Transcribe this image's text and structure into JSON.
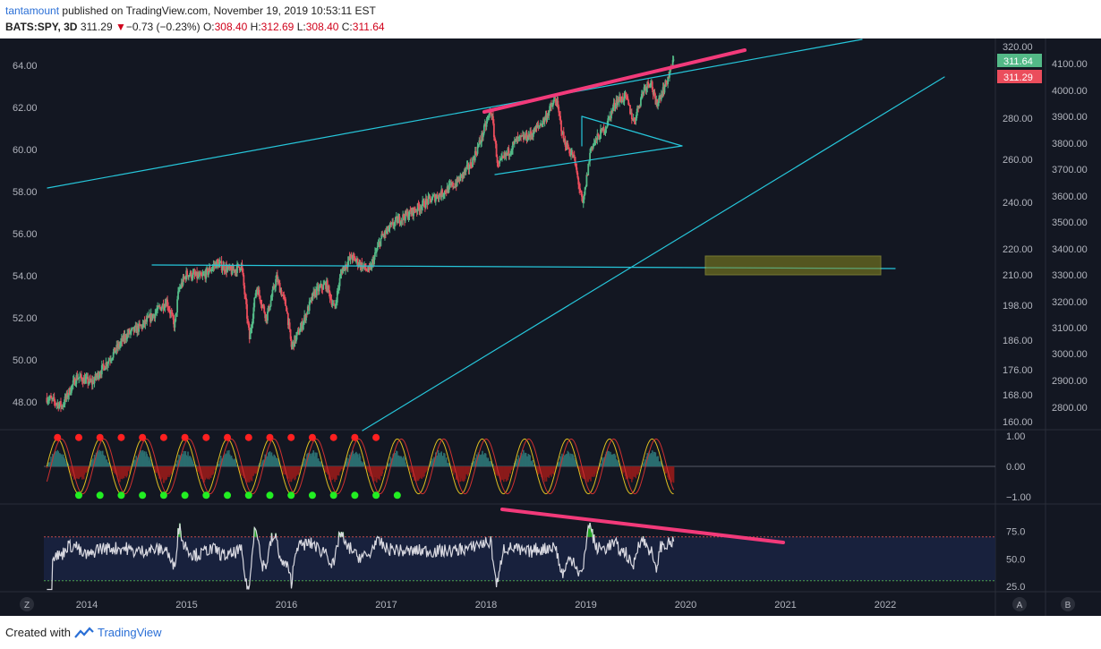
{
  "header": {
    "author": "tantamount",
    "published_text": "published on TradingView.com, November 19, 2019 10:53:11 EST",
    "symbol": "BATS:SPY, 3D",
    "last": "311.29",
    "change": "−0.73 (−0.23%)",
    "o_label": "O:",
    "o": "308.40",
    "h_label": "H:",
    "h": "312.69",
    "l_label": "L:",
    "l": "308.40",
    "c_label": "C:",
    "c": "311.64"
  },
  "footer": {
    "created_with": "Created with",
    "brand": "TradingView"
  },
  "colors": {
    "background": "#131722",
    "up": "#53b987",
    "down": "#eb4d5c",
    "trend": "#26c6da",
    "pink": "#f23a7a",
    "zone": "#8a8a20"
  },
  "chart_data": [
    {
      "type": "candlestick",
      "symbol": "BATS:SPY",
      "timeframe": "3D",
      "x_ticks": [
        "2014",
        "2015",
        "2016",
        "2017",
        "2018",
        "2019",
        "2020",
        "2021",
        "2022"
      ],
      "left_axis_ticks": [
        "64.00",
        "62.00",
        "60.00",
        "58.00",
        "56.00",
        "54.00",
        "52.00",
        "50.00",
        "48.00"
      ],
      "right_axis_ticks": [
        "320.00",
        "280.00",
        "260.00",
        "240.00",
        "220.00",
        "210.00",
        "198.00",
        "186.00",
        "176.00",
        "168.00",
        "160.00"
      ],
      "right_axis2_ticks": [
        "4100.00",
        "4000.00",
        "3900.00",
        "3800.00",
        "3700.00",
        "3600.00",
        "3500.00",
        "3400.00",
        "3300.00",
        "3200.00",
        "3100.00",
        "3000.00",
        "2900.00",
        "2800.00"
      ],
      "price_labels": [
        {
          "value": "311.64",
          "color": "#53b987"
        },
        {
          "value": "311.29",
          "color": "#eb4d5c"
        }
      ],
      "price_path": [
        [
          2013.6,
          48.2
        ],
        [
          2013.75,
          47.8
        ],
        [
          2013.9,
          49.2
        ],
        [
          2014.05,
          48.9
        ],
        [
          2014.25,
          50.2
        ],
        [
          2014.4,
          51.2
        ],
        [
          2014.55,
          51.6
        ],
        [
          2014.7,
          52.3
        ],
        [
          2014.8,
          52.8
        ],
        [
          2014.88,
          51.6
        ],
        [
          2014.92,
          53.3
        ],
        [
          2015.0,
          54.1
        ],
        [
          2015.15,
          53.9
        ],
        [
          2015.3,
          54.6
        ],
        [
          2015.45,
          54.2
        ],
        [
          2015.55,
          54.5
        ],
        [
          2015.63,
          51.0
        ],
        [
          2015.7,
          53.5
        ],
        [
          2015.8,
          52.0
        ],
        [
          2015.9,
          53.9
        ],
        [
          2016.0,
          52.5
        ],
        [
          2016.05,
          50.6
        ],
        [
          2016.15,
          51.6
        ],
        [
          2016.28,
          53.2
        ],
        [
          2016.4,
          53.6
        ],
        [
          2016.48,
          52.4
        ],
        [
          2016.55,
          54.2
        ],
        [
          2016.65,
          54.9
        ],
        [
          2016.75,
          54.5
        ],
        [
          2016.83,
          54.2
        ],
        [
          2016.95,
          55.8
        ],
        [
          2017.1,
          56.6
        ],
        [
          2017.25,
          57.0
        ],
        [
          2017.4,
          57.5
        ],
        [
          2017.55,
          57.9
        ],
        [
          2017.7,
          58.4
        ],
        [
          2017.85,
          59.3
        ],
        [
          2017.95,
          60.5
        ],
        [
          2018.05,
          61.9
        ],
        [
          2018.12,
          59.2
        ],
        [
          2018.3,
          60.4
        ],
        [
          2018.45,
          60.7
        ],
        [
          2018.58,
          61.4
        ],
        [
          2018.7,
          62.4
        ],
        [
          2018.78,
          60.4
        ],
        [
          2018.88,
          59.6
        ],
        [
          2018.97,
          57.3
        ],
        [
          2019.05,
          60.1
        ],
        [
          2019.2,
          61.1
        ],
        [
          2019.3,
          62.3
        ],
        [
          2019.4,
          62.5
        ],
        [
          2019.48,
          61.3
        ],
        [
          2019.58,
          62.9
        ],
        [
          2019.65,
          63.3
        ],
        [
          2019.7,
          62.1
        ],
        [
          2019.8,
          63.1
        ],
        [
          2019.88,
          64.2
        ]
      ],
      "trendlines": [
        "upper channel",
        "lower rising trendline",
        "horizontal support",
        "wedge",
        "pink resistance"
      ],
      "highlight_zone": "support zone"
    },
    {
      "type": "line",
      "name": "oscillator",
      "y_ticks": [
        "1.00",
        "0.00",
        "−1.00"
      ],
      "ylim": [
        -1,
        1
      ]
    },
    {
      "type": "line",
      "name": "RSI",
      "y_ticks": [
        "75.0",
        "50.0",
        "25.0"
      ],
      "ylim": [
        20,
        100
      ],
      "levels": [
        70,
        30
      ]
    }
  ],
  "corner_buttons": {
    "left": "Z",
    "a": "A",
    "b": "B"
  }
}
